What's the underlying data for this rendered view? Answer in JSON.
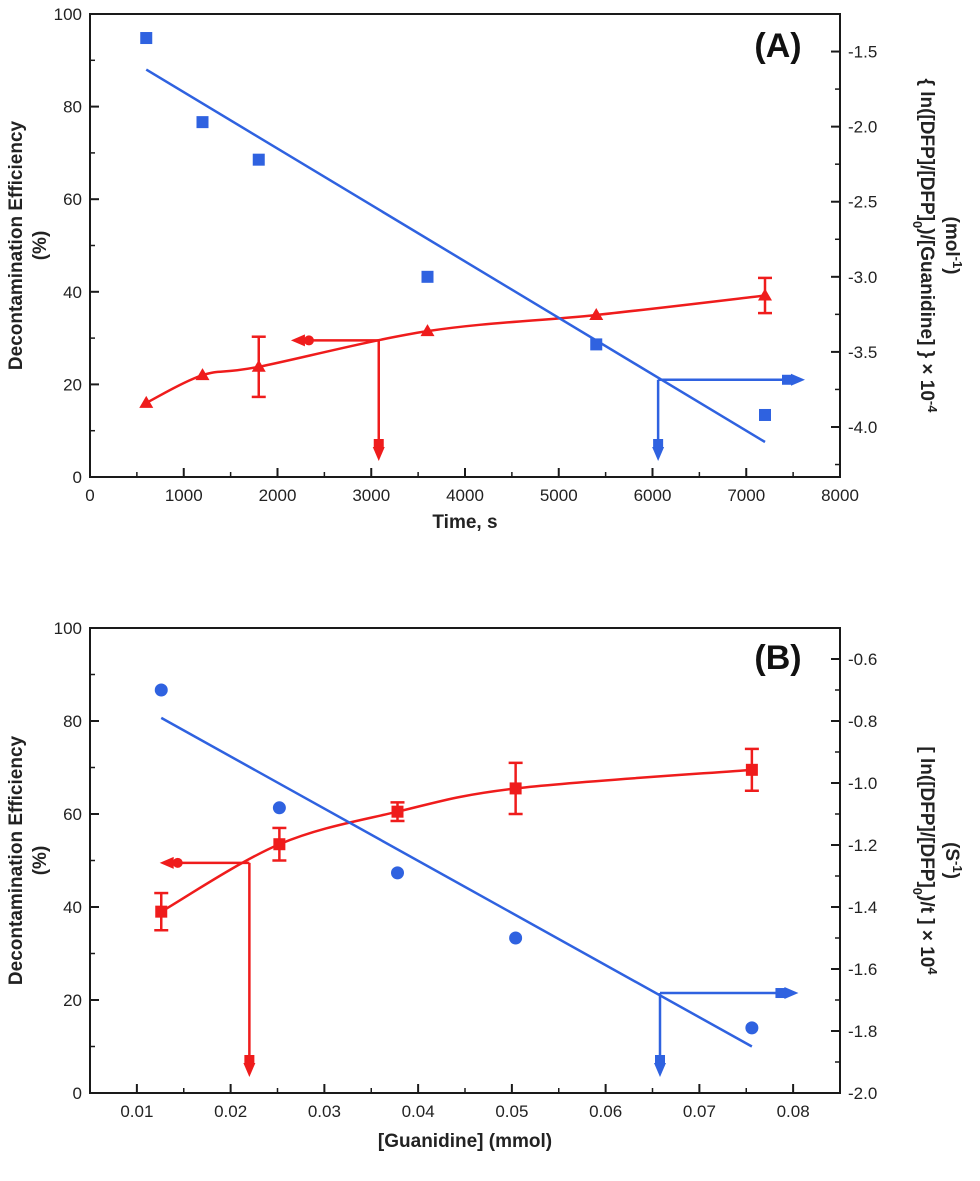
{
  "chart_data": [
    {
      "type": "scatter",
      "panel_label": "(A)",
      "xlabel": "Time, s",
      "ylabel_left": [
        "Decontamination Efficiency",
        "(%)"
      ],
      "ylabel_right": [
        "{ ln([DFP]/[DFP]",
        "0",
        ")/[Guanidine] } × 10",
        "-4",
        "(mol",
        "-1",
        ")"
      ],
      "xlim": [
        0,
        8000
      ],
      "ylim_left": [
        0,
        100
      ],
      "ylim_right": [
        -4.333,
        -1.25
      ],
      "xticks": [
        0,
        1000,
        2000,
        3000,
        4000,
        5000,
        6000,
        7000,
        8000
      ],
      "xtick_labels": [
        "0",
        "1000",
        "2000",
        "3000",
        "4000",
        "5000",
        "6000",
        "7000",
        "8000"
      ],
      "yticks_left": [
        0,
        20,
        40,
        60,
        80,
        100
      ],
      "ytick_labels_left": [
        "0",
        "20",
        "40",
        "60",
        "80",
        "100"
      ],
      "yticks_right": [
        -4.0,
        -3.5,
        -3.0,
        -2.5,
        -2.0,
        -1.5
      ],
      "ytick_labels_right": [
        "-4.0",
        "-3.5",
        "-3.0",
        "-2.5",
        "-2.0",
        "-1.5"
      ],
      "series": [
        {
          "axis": "left",
          "marker": "triangle",
          "color": "#ef1c1c",
          "x": [
            600,
            1200,
            1800,
            3600,
            5400,
            7200
          ],
          "y": [
            16,
            22,
            23.8,
            31.5,
            35,
            39.2
          ],
          "yerr": [
            0,
            0,
            6.5,
            0,
            0,
            3.8
          ],
          "fit": "curve"
        },
        {
          "axis": "right",
          "marker": "square",
          "color": "#2f62e0",
          "x": [
            600,
            1200,
            1800,
            3600,
            5400,
            7200
          ],
          "y": [
            -1.41,
            -1.97,
            -2.22,
            -3.0,
            -3.45,
            -3.92
          ],
          "fit_line": [
            [
              600,
              -1.62
            ],
            [
              7200,
              -4.1
            ]
          ]
        }
      ],
      "axis_indicators": [
        {
          "color": "#ef1c1c",
          "from": [
            3080,
            29.5
          ],
          "elbow_x": 2250,
          "direction": "left"
        },
        {
          "color": "#2f62e0",
          "from": [
            6060,
            21
          ],
          "elbow_x": 7520,
          "direction": "right"
        }
      ]
    },
    {
      "type": "scatter",
      "panel_label": "(B)",
      "xlabel": "[Guanidine] (mmol)",
      "ylabel_left": [
        "Decontamination Efficiency",
        "(%)"
      ],
      "ylabel_right": [
        "[ ln([DFP]/[DFP]",
        "0",
        ")/t ] × 10",
        "4",
        "(S",
        "-1",
        ")"
      ],
      "xlim": [
        0.005,
        0.085
      ],
      "ylim_left": [
        0,
        100
      ],
      "ylim_right": [
        -2.0,
        -0.5
      ],
      "xticks": [
        0.01,
        0.02,
        0.03,
        0.04,
        0.05,
        0.06,
        0.07,
        0.08
      ],
      "xtick_labels": [
        "0.01",
        "0.02",
        "0.03",
        "0.04",
        "0.05",
        "0.06",
        "0.07",
        "0.08"
      ],
      "yticks_left": [
        0,
        20,
        40,
        60,
        80,
        100
      ],
      "ytick_labels_left": [
        "0",
        "20",
        "40",
        "60",
        "80",
        "100"
      ],
      "yticks_right": [
        -2.0,
        -1.8,
        -1.6,
        -1.4,
        -1.2,
        -1.0,
        -0.8,
        -0.6
      ],
      "ytick_labels_right": [
        "-2.0",
        "-1.8",
        "-1.6",
        "-1.4",
        "-1.2",
        "-1.0",
        "-0.8",
        "-0.6"
      ],
      "series": [
        {
          "axis": "left",
          "marker": "square",
          "color": "#ef1c1c",
          "x": [
            0.0126,
            0.0252,
            0.0378,
            0.0504,
            0.0756
          ],
          "y": [
            39,
            53.5,
            60.5,
            65.5,
            69.5
          ],
          "yerr": [
            4,
            3.5,
            2,
            5.5,
            4.5
          ],
          "fit": "curve"
        },
        {
          "axis": "right",
          "marker": "circle",
          "color": "#2f62e0",
          "x": [
            0.0126,
            0.0252,
            0.0378,
            0.0504,
            0.0756
          ],
          "y": [
            -0.7,
            -1.08,
            -1.29,
            -1.5,
            -1.79
          ],
          "fit_line": [
            [
              0.0126,
              -0.79
            ],
            [
              0.0756,
              -1.85
            ]
          ]
        }
      ],
      "axis_indicators": [
        {
          "color": "#ef1c1c",
          "from": [
            0.022,
            49.5
          ],
          "elbow_x": 0.0135,
          "direction": "left"
        },
        {
          "color": "#2f62e0",
          "from": [
            0.0658,
            21.5
          ],
          "elbow_x": 0.0795,
          "direction": "right"
        }
      ]
    }
  ]
}
